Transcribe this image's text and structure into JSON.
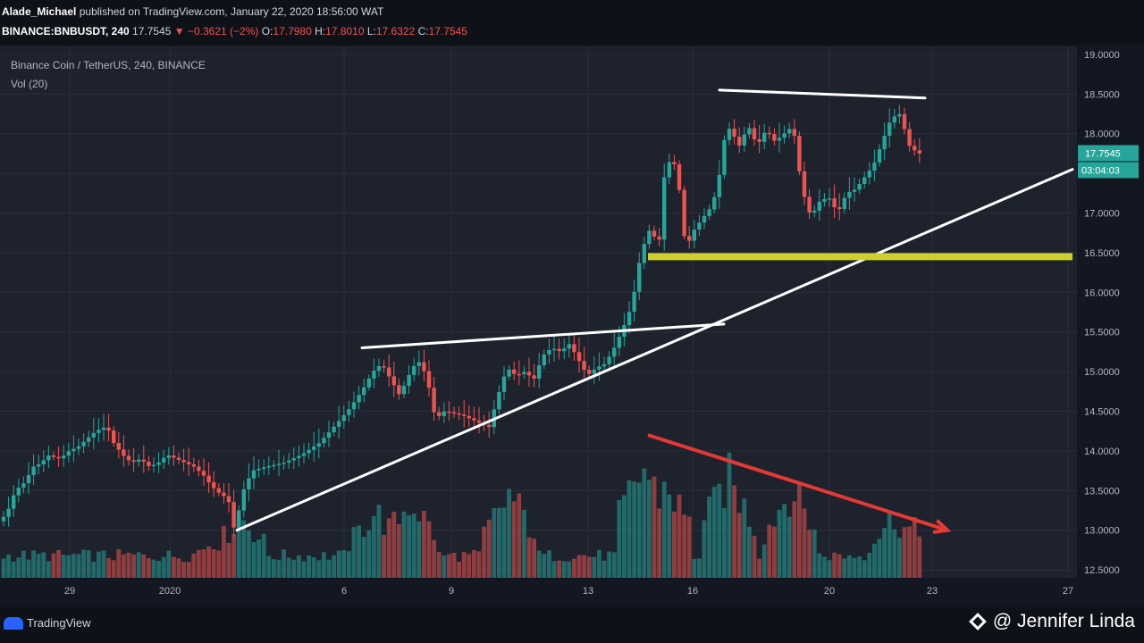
{
  "header": {
    "author": "Alade_Michael",
    "published": "published on TradingView.com, January 22, 2020 18:56:00 WAT",
    "symbol": "BINANCE:BNBUSDT, 240",
    "price": "17.7545",
    "change": "▼ −0.3621 (−2%)",
    "o_label": "O:",
    "o_value": "17.7980",
    "h_label": "H:",
    "h_value": "17.8010",
    "l_label": "L:",
    "l_value": "17.6322",
    "c_label": "C:",
    "c_value": "17.7545"
  },
  "legend": {
    "title": "Binance Coin / TetherUS, 240, BINANCE",
    "vol": "Vol (20)"
  },
  "badges": {
    "price": "17.7545",
    "countdown": "03:04:03"
  },
  "footer": {
    "brand": "TradingView",
    "watermark": "@ Jennifer Linda"
  },
  "colors": {
    "up": "#26a69a",
    "down": "#ef5350",
    "background": "#131722",
    "support_line": "#cfcf2e",
    "trend_line": "#ffffff",
    "volume_arrow": "#e53935"
  },
  "chart_data": {
    "type": "candlestick",
    "title": "Binance Coin / TetherUS, 240, BINANCE",
    "x_tick_labels": [
      "29",
      "2020",
      "6",
      "9",
      "13",
      "16",
      "20",
      "23",
      "27"
    ],
    "y_tick_labels": [
      "19.0000",
      "18.5000",
      "18.0000",
      "17.5000",
      "17.0000",
      "16.5000",
      "16.0000",
      "15.5000",
      "15.0000",
      "14.5000",
      "14.0000",
      "13.5000",
      "13.0000",
      "12.5000"
    ],
    "ylim": [
      12.4,
      19.1
    ],
    "price_path": [
      [
        0,
        13.1
      ],
      [
        10,
        13.2
      ],
      [
        20,
        13.5
      ],
      [
        30,
        13.6
      ],
      [
        40,
        13.8
      ],
      [
        50,
        13.85
      ],
      [
        55,
        13.95
      ],
      [
        70,
        13.9
      ],
      [
        80,
        14.0
      ],
      [
        90,
        14.05
      ],
      [
        100,
        14.15
      ],
      [
        110,
        14.25
      ],
      [
        120,
        14.3
      ],
      [
        125,
        14.25
      ],
      [
        130,
        14.1
      ],
      [
        140,
        13.95
      ],
      [
        150,
        13.85
      ],
      [
        160,
        13.9
      ],
      [
        170,
        13.8
      ],
      [
        180,
        13.85
      ],
      [
        190,
        13.95
      ],
      [
        200,
        13.9
      ],
      [
        210,
        13.85
      ],
      [
        220,
        13.8
      ],
      [
        230,
        13.7
      ],
      [
        240,
        13.55
      ],
      [
        250,
        13.45
      ],
      [
        258,
        13.4
      ],
      [
        265,
        13.0
      ],
      [
        275,
        13.5
      ],
      [
        285,
        13.75
      ],
      [
        300,
        13.8
      ],
      [
        320,
        13.85
      ],
      [
        340,
        13.95
      ],
      [
        360,
        14.1
      ],
      [
        380,
        14.35
      ],
      [
        395,
        14.55
      ],
      [
        410,
        14.8
      ],
      [
        420,
        15.0
      ],
      [
        430,
        15.1
      ],
      [
        440,
        14.9
      ],
      [
        450,
        14.7
      ],
      [
        460,
        14.95
      ],
      [
        470,
        15.15
      ],
      [
        480,
        14.95
      ],
      [
        490,
        14.4
      ],
      [
        500,
        14.5
      ],
      [
        520,
        14.45
      ],
      [
        540,
        14.35
      ],
      [
        550,
        14.3
      ],
      [
        560,
        14.7
      ],
      [
        570,
        15.05
      ],
      [
        580,
        14.95
      ],
      [
        590,
        15.0
      ],
      [
        600,
        14.9
      ],
      [
        610,
        15.2
      ],
      [
        620,
        15.3
      ],
      [
        630,
        15.25
      ],
      [
        640,
        15.35
      ],
      [
        650,
        15.15
      ],
      [
        660,
        14.95
      ],
      [
        670,
        15.05
      ],
      [
        680,
        15.1
      ],
      [
        690,
        15.3
      ],
      [
        700,
        15.55
      ],
      [
        710,
        15.85
      ],
      [
        720,
        16.5
      ],
      [
        730,
        16.8
      ],
      [
        740,
        16.6
      ],
      [
        745,
        17.4
      ],
      [
        750,
        17.65
      ],
      [
        760,
        17.6
      ],
      [
        765,
        17.05
      ],
      [
        770,
        16.55
      ],
      [
        780,
        16.8
      ],
      [
        790,
        16.95
      ],
      [
        800,
        17.1
      ],
      [
        810,
        17.6
      ],
      [
        815,
        18.1
      ],
      [
        820,
        18.05
      ],
      [
        830,
        17.85
      ],
      [
        840,
        18.1
      ],
      [
        850,
        17.85
      ],
      [
        860,
        18.05
      ],
      [
        870,
        17.9
      ],
      [
        880,
        18.0
      ],
      [
        890,
        18.1
      ],
      [
        900,
        17.3
      ],
      [
        910,
        16.95
      ],
      [
        920,
        17.15
      ],
      [
        930,
        17.2
      ],
      [
        940,
        17.0
      ],
      [
        950,
        17.25
      ],
      [
        960,
        17.3
      ],
      [
        970,
        17.45
      ],
      [
        980,
        17.6
      ],
      [
        990,
        17.9
      ],
      [
        1000,
        18.2
      ],
      [
        1010,
        18.25
      ],
      [
        1020,
        17.85
      ],
      [
        1030,
        17.75
      ]
    ],
    "volume": [
      {
        "x": 240,
        "v": 0.35,
        "up": false
      },
      {
        "x": 270,
        "v": 0.55,
        "up": true
      },
      {
        "x": 420,
        "v": 0.6,
        "up": true
      },
      {
        "x": 460,
        "v": 0.7,
        "up": false
      },
      {
        "x": 570,
        "v": 0.75,
        "up": true
      },
      {
        "x": 720,
        "v": 1.0,
        "up": true
      },
      {
        "x": 745,
        "v": 0.85,
        "up": false
      },
      {
        "x": 815,
        "v": 0.9,
        "up": true
      },
      {
        "x": 885,
        "v": 0.8,
        "up": true
      },
      {
        "x": 1000,
        "v": 0.55,
        "up": true
      },
      {
        "x": 1020,
        "v": 0.45,
        "up": false
      }
    ],
    "annotations": [
      {
        "type": "trend_line",
        "from": [
          265,
          13.0
        ],
        "to": [
          1200,
          17.55
        ]
      },
      {
        "type": "trend_line",
        "from": [
          405,
          15.3
        ],
        "to": [
          810,
          15.6
        ]
      },
      {
        "type": "trend_line",
        "from": [
          805,
          18.55
        ],
        "to": [
          1035,
          18.45
        ]
      },
      {
        "type": "horizontal_zone",
        "from_x": 725,
        "to_x": 1200,
        "y": 16.45
      },
      {
        "type": "arrow",
        "from": [
          725,
          14.2
        ],
        "to": [
          1060,
          13.0
        ]
      }
    ]
  }
}
